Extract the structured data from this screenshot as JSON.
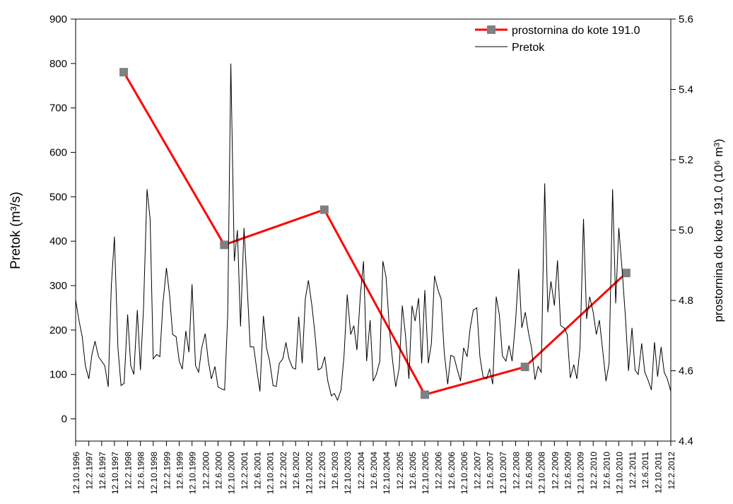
{
  "chart_data": {
    "type": "line",
    "ylabel": "Pretok (m³/s)",
    "y2label": "prostornina do kote 191.0 (10⁶ m³)",
    "xlim": [
      1996.78,
      2012.12
    ],
    "xticks": [
      {
        "value": 1996.78,
        "label": "12.10.1996"
      },
      {
        "value": 1997.12,
        "label": "12.2.1997"
      },
      {
        "value": 1997.45,
        "label": "12.6.1997"
      },
      {
        "value": 1997.78,
        "label": "12.10.1997"
      },
      {
        "value": 1998.12,
        "label": "12.2.1998"
      },
      {
        "value": 1998.45,
        "label": "12.6.1998"
      },
      {
        "value": 1998.78,
        "label": "12.10.1998"
      },
      {
        "value": 1999.12,
        "label": "12.2.1999"
      },
      {
        "value": 1999.45,
        "label": "12.6.1999"
      },
      {
        "value": 1999.78,
        "label": "12.10.1999"
      },
      {
        "value": 2000.12,
        "label": "12.2.2000"
      },
      {
        "value": 2000.45,
        "label": "12.6.2000"
      },
      {
        "value": 2000.78,
        "label": "12.10.2000"
      },
      {
        "value": 2001.12,
        "label": "12.2.2001"
      },
      {
        "value": 2001.45,
        "label": "12.6.2001"
      },
      {
        "value": 2001.78,
        "label": "12.10.2001"
      },
      {
        "value": 2002.12,
        "label": "12.2.2002"
      },
      {
        "value": 2002.45,
        "label": "12.6.2002"
      },
      {
        "value": 2002.78,
        "label": "12.10.2002"
      },
      {
        "value": 2003.12,
        "label": "12.2.2003"
      },
      {
        "value": 2003.45,
        "label": "12.6.2003"
      },
      {
        "value": 2003.78,
        "label": "12.10.2003"
      },
      {
        "value": 2004.12,
        "label": "12.2.2004"
      },
      {
        "value": 2004.45,
        "label": "12.6.2004"
      },
      {
        "value": 2004.78,
        "label": "12.10.2004"
      },
      {
        "value": 2005.12,
        "label": "12.2.2005"
      },
      {
        "value": 2005.45,
        "label": "12.6.2005"
      },
      {
        "value": 2005.78,
        "label": "12.10.2005"
      },
      {
        "value": 2006.12,
        "label": "12.2.2006"
      },
      {
        "value": 2006.45,
        "label": "12.6.2006"
      },
      {
        "value": 2006.78,
        "label": "12.10.2006"
      },
      {
        "value": 2007.12,
        "label": "12.2.2007"
      },
      {
        "value": 2007.45,
        "label": "12.6.2007"
      },
      {
        "value": 2007.78,
        "label": "12.10.2007"
      },
      {
        "value": 2008.12,
        "label": "12.2.2008"
      },
      {
        "value": 2008.45,
        "label": "12.6.2008"
      },
      {
        "value": 2008.78,
        "label": "12.10.2008"
      },
      {
        "value": 2009.12,
        "label": "12.2.2009"
      },
      {
        "value": 2009.45,
        "label": "12.6.2009"
      },
      {
        "value": 2009.78,
        "label": "12.10.2009"
      },
      {
        "value": 2010.12,
        "label": "12.2.2010"
      },
      {
        "value": 2010.45,
        "label": "12.6.2010"
      },
      {
        "value": 2010.78,
        "label": "12.10.2010"
      },
      {
        "value": 2011.12,
        "label": "12.2.2011"
      },
      {
        "value": 2011.45,
        "label": "12.6.2011"
      },
      {
        "value": 2011.78,
        "label": "12.10.2011"
      },
      {
        "value": 2012.12,
        "label": "12.2.2012"
      }
    ],
    "ylim": [
      -50,
      900
    ],
    "yticks": [
      0,
      100,
      200,
      300,
      400,
      500,
      600,
      700,
      800,
      900
    ],
    "y2lim": [
      4.4,
      5.6
    ],
    "y2ticks": [
      4.4,
      4.6,
      4.8,
      {
        "value": 5,
        "label": "5.0"
      },
      5.2,
      5.4,
      5.6
    ],
    "legend": "upper right",
    "series": [
      {
        "name": "prostornina do kote 191.0",
        "color": "#ff0000",
        "marker_color": "#808080",
        "axis": "y2",
        "x": [
          1998.02,
          2000.61,
          2003.19,
          2005.78,
          2008.36,
          2010.97
        ],
        "values": [
          5.449,
          4.958,
          5.058,
          4.532,
          4.611,
          4.878
        ]
      },
      {
        "name": "Pretok",
        "color": "#000000",
        "x": [
          1996.78,
          1996.87,
          1996.95,
          1997.03,
          1997.12,
          1997.2,
          1997.28,
          1997.37,
          1997.45,
          1997.53,
          1997.62,
          1997.7,
          1997.78,
          1997.87,
          1997.95,
          1998.03,
          1998.12,
          1998.2,
          1998.28,
          1998.37,
          1998.45,
          1998.53,
          1998.62,
          1998.7,
          1998.78,
          1998.87,
          1998.95,
          1999.03,
          1999.12,
          1999.2,
          1999.28,
          1999.37,
          1999.45,
          1999.53,
          1999.62,
          1999.7,
          1999.78,
          1999.87,
          1999.95,
          2000.03,
          2000.12,
          2000.2,
          2000.28,
          2000.37,
          2000.45,
          2000.53,
          2000.62,
          2000.7,
          2000.78,
          2000.87,
          2000.95,
          2001.03,
          2001.12,
          2001.2,
          2001.28,
          2001.37,
          2001.45,
          2001.53,
          2001.62,
          2001.7,
          2001.78,
          2001.87,
          2001.95,
          2002.03,
          2002.12,
          2002.2,
          2002.28,
          2002.37,
          2002.45,
          2002.53,
          2002.62,
          2002.7,
          2002.78,
          2002.87,
          2002.95,
          2003.03,
          2003.12,
          2003.2,
          2003.28,
          2003.37,
          2003.45,
          2003.53,
          2003.62,
          2003.7,
          2003.78,
          2003.87,
          2003.95,
          2004.03,
          2004.12,
          2004.2,
          2004.28,
          2004.37,
          2004.45,
          2004.53,
          2004.62,
          2004.7,
          2004.78,
          2004.87,
          2004.95,
          2005.03,
          2005.12,
          2005.2,
          2005.28,
          2005.37,
          2005.45,
          2005.53,
          2005.62,
          2005.7,
          2005.78,
          2005.87,
          2005.95,
          2006.03,
          2006.12,
          2006.2,
          2006.28,
          2006.37,
          2006.45,
          2006.53,
          2006.62,
          2006.7,
          2006.78,
          2006.87,
          2006.95,
          2007.03,
          2007.12,
          2007.2,
          2007.28,
          2007.37,
          2007.45,
          2007.53,
          2007.62,
          2007.7,
          2007.78,
          2007.87,
          2007.95,
          2008.03,
          2008.12,
          2008.2,
          2008.28,
          2008.37,
          2008.45,
          2008.53,
          2008.62,
          2008.7,
          2008.78,
          2008.87,
          2008.95,
          2009.03,
          2009.12,
          2009.2,
          2009.28,
          2009.37,
          2009.45,
          2009.53,
          2009.62,
          2009.7,
          2009.78,
          2009.87,
          2009.95,
          2010.03,
          2010.12,
          2010.2,
          2010.28,
          2010.37,
          2010.45,
          2010.53,
          2010.62,
          2010.7,
          2010.78,
          2010.87,
          2010.95,
          2011.03,
          2011.12,
          2011.2,
          2011.28,
          2011.37,
          2011.45,
          2011.53,
          2011.62,
          2011.7,
          2011.78,
          2011.87,
          2011.95,
          2012.03,
          2012.12
        ],
        "values": [
          268,
          220,
          185,
          120,
          90,
          145,
          175,
          140,
          130,
          120,
          72,
          300,
          410,
          160,
          75,
          80,
          235,
          120,
          100,
          245,
          110,
          250,
          517,
          450,
          135,
          145,
          140,
          260,
          340,
          280,
          190,
          185,
          130,
          112,
          198,
          150,
          303,
          120,
          105,
          160,
          192,
          130,
          90,
          118,
          72,
          68,
          65,
          235,
          800,
          355,
          425,
          208,
          430,
          300,
          162,
          162,
          110,
          62,
          232,
          160,
          130,
          75,
          73,
          125,
          135,
          172,
          135,
          115,
          112,
          230,
          125,
          270,
          312,
          255,
          190,
          110,
          115,
          140,
          85,
          52,
          57,
          42,
          65,
          145,
          280,
          190,
          210,
          155,
          280,
          355,
          130,
          222,
          85,
          100,
          130,
          355,
          320,
          200,
          130,
          72,
          115,
          255,
          190,
          90,
          255,
          220,
          272,
          125,
          290,
          125,
          170,
          322,
          290,
          270,
          150,
          78,
          143,
          140,
          110,
          85,
          160,
          140,
          205,
          245,
          250,
          140,
          95,
          90,
          112,
          78,
          275,
          235,
          142,
          130,
          165,
          130,
          220,
          338,
          205,
          240,
          195,
          160,
          88,
          118,
          105,
          530,
          240,
          310,
          255,
          357,
          210,
          205,
          190,
          92,
          122,
          90,
          160,
          450,
          225,
          275,
          240,
          190,
          222,
          150,
          85,
          125,
          517,
          260,
          430,
          330,
          230,
          108,
          205,
          110,
          100,
          170,
          105,
          88,
          65,
          173,
          95,
          162,
          105,
          90,
          62
        ]
      }
    ]
  }
}
